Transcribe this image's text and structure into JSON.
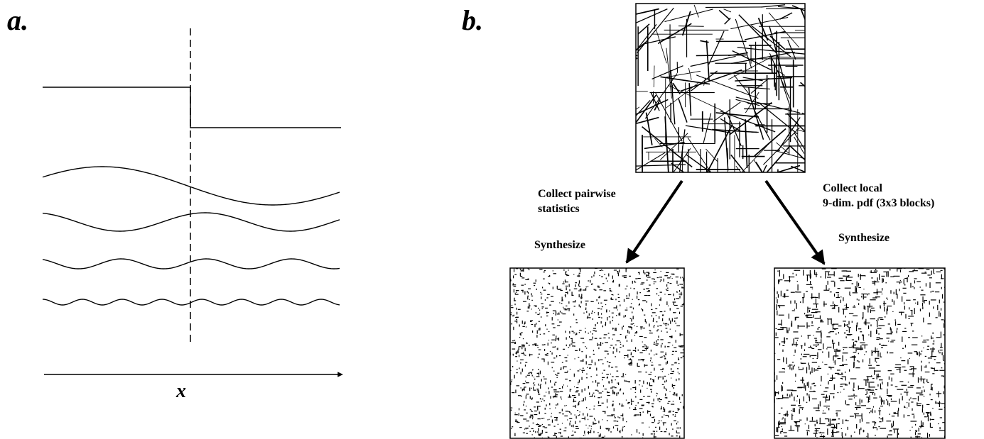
{
  "panel_a": {
    "label": "a.",
    "axis_label": "x"
  },
  "panel_b": {
    "label": "b.",
    "left_branch": {
      "lines": [
        "Collect pairwise",
        "statistics"
      ],
      "action": "Synthesize"
    },
    "right_branch": {
      "lines": [
        "Collect local",
        "9-dim. pdf (3x3 blocks)"
      ],
      "action": "Synthesize"
    }
  }
}
